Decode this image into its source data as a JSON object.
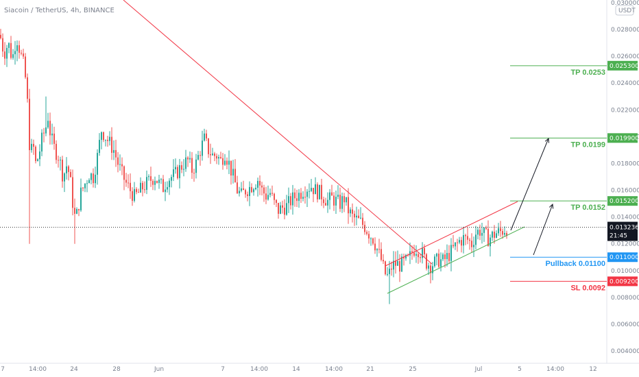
{
  "header": {
    "title": "Siacoin / TetherUS, 4h, BINANCE",
    "currency": "USDT"
  },
  "colors": {
    "up": "#26a69a",
    "down": "#ef5350",
    "tp": "#4caf50",
    "pullback": "#2196f3",
    "sl": "#f23645",
    "trend": "#f23645",
    "channel_lower": "#4caf50"
  },
  "chart_data": {
    "type": "candlestick",
    "title": "Siacoin / TetherUS, 4h, BINANCE",
    "ylim": [
      0.004,
      0.03
    ],
    "y_ticks": [
      "0.030000",
      "0.028000",
      "0.026000",
      "0.024000",
      "0.022000",
      "0.020000",
      "0.018000",
      "0.016000",
      "0.014000",
      "0.012000",
      "0.010000",
      "0.008000",
      "0.006000",
      "0.004000"
    ],
    "x_ticks": [
      "7",
      "14:00",
      "24",
      "28",
      "Jun",
      "7",
      "14:00",
      "14",
      "14:00",
      "21",
      "25",
      "Jul",
      "5",
      "14:00",
      "12"
    ],
    "last_price": "0.013236",
    "countdown": "21:45",
    "levels": [
      {
        "label": "TP 0.0253",
        "price": 0.0253,
        "tag": "0.025300",
        "kind": "tp"
      },
      {
        "label": "TP 0.0199",
        "price": 0.0199,
        "tag": "0.019900",
        "kind": "tp"
      },
      {
        "label": "TP 0.0152",
        "price": 0.0152,
        "tag": "0.015200",
        "kind": "tp"
      },
      {
        "label": "Pullback 0.01100",
        "price": 0.011,
        "tag": "0.011000",
        "kind": "pullback"
      },
      {
        "label": "SL 0.0092",
        "price": 0.0092,
        "tag": "0.009200",
        "kind": "sl"
      }
    ],
    "price_path": [
      [
        0,
        0.0276
      ],
      [
        6,
        0.0262
      ],
      [
        12,
        0.027
      ],
      [
        18,
        0.0258
      ],
      [
        24,
        0.0275
      ],
      [
        30,
        0.0262
      ],
      [
        36,
        0.025
      ],
      [
        40,
        0.0225
      ],
      [
        44,
        0.0185
      ],
      [
        48,
        0.0195
      ],
      [
        52,
        0.018
      ],
      [
        56,
        0.0185
      ],
      [
        62,
        0.02
      ],
      [
        66,
        0.0205
      ],
      [
        70,
        0.0215
      ],
      [
        74,
        0.02
      ],
      [
        80,
        0.019
      ],
      [
        86,
        0.0185
      ],
      [
        92,
        0.017
      ],
      [
        98,
        0.018
      ],
      [
        104,
        0.0162
      ],
      [
        108,
        0.014
      ],
      [
        112,
        0.0142
      ],
      [
        118,
        0.0158
      ],
      [
        124,
        0.0165
      ],
      [
        130,
        0.0172
      ],
      [
        136,
        0.017
      ],
      [
        142,
        0.0185
      ],
      [
        148,
        0.0205
      ],
      [
        154,
        0.02
      ],
      [
        160,
        0.0195
      ],
      [
        166,
        0.019
      ],
      [
        172,
        0.018
      ],
      [
        178,
        0.0172
      ],
      [
        184,
        0.0165
      ],
      [
        190,
        0.016
      ],
      [
        196,
        0.0155
      ],
      [
        202,
        0.0158
      ],
      [
        208,
        0.0162
      ],
      [
        214,
        0.0165
      ],
      [
        220,
        0.0168
      ],
      [
        226,
        0.017
      ],
      [
        232,
        0.0165
      ],
      [
        238,
        0.0162
      ],
      [
        244,
        0.0168
      ],
      [
        250,
        0.017
      ],
      [
        256,
        0.0172
      ],
      [
        262,
        0.0176
      ],
      [
        268,
        0.018
      ],
      [
        274,
        0.0182
      ],
      [
        280,
        0.0175
      ],
      [
        286,
        0.018
      ],
      [
        292,
        0.019
      ],
      [
        298,
        0.0198
      ],
      [
        304,
        0.019
      ],
      [
        310,
        0.0186
      ],
      [
        316,
        0.0186
      ],
      [
        322,
        0.0182
      ],
      [
        328,
        0.0188
      ],
      [
        334,
        0.018
      ],
      [
        340,
        0.017
      ],
      [
        346,
        0.016
      ],
      [
        352,
        0.0156
      ],
      [
        358,
        0.016
      ],
      [
        364,
        0.0162
      ],
      [
        370,
        0.0165
      ],
      [
        376,
        0.0168
      ],
      [
        382,
        0.016
      ],
      [
        388,
        0.0156
      ],
      [
        394,
        0.0158
      ],
      [
        400,
        0.015
      ],
      [
        406,
        0.0145
      ],
      [
        412,
        0.0147
      ],
      [
        418,
        0.0148
      ],
      [
        424,
        0.0152
      ],
      [
        430,
        0.0155
      ],
      [
        436,
        0.0157
      ],
      [
        442,
        0.016
      ],
      [
        448,
        0.0162
      ],
      [
        454,
        0.0163
      ],
      [
        460,
        0.016
      ],
      [
        466,
        0.0158
      ],
      [
        472,
        0.0155
      ],
      [
        478,
        0.0152
      ],
      [
        484,
        0.0154
      ],
      [
        490,
        0.0152
      ],
      [
        496,
        0.015
      ],
      [
        502,
        0.0154
      ],
      [
        508,
        0.0145
      ],
      [
        514,
        0.014
      ],
      [
        520,
        0.0138
      ],
      [
        526,
        0.0136
      ],
      [
        532,
        0.0133
      ],
      [
        538,
        0.0128
      ],
      [
        544,
        0.0124
      ],
      [
        550,
        0.0116
      ],
      [
        556,
        0.0108
      ],
      [
        560,
        0.01
      ],
      [
        564,
        0.0095
      ],
      [
        568,
        0.0098
      ],
      [
        572,
        0.0104
      ],
      [
        578,
        0.0105
      ],
      [
        584,
        0.0104
      ],
      [
        590,
        0.0106
      ],
      [
        596,
        0.0108
      ],
      [
        602,
        0.0115
      ],
      [
        606,
        0.0117
      ],
      [
        610,
        0.0116
      ],
      [
        616,
        0.0112
      ],
      [
        622,
        0.0106
      ],
      [
        628,
        0.0104
      ],
      [
        634,
        0.0106
      ],
      [
        640,
        0.0108
      ],
      [
        646,
        0.0107
      ],
      [
        652,
        0.011
      ],
      [
        658,
        0.0114
      ],
      [
        664,
        0.0118
      ],
      [
        670,
        0.0122
      ],
      [
        676,
        0.0124
      ],
      [
        682,
        0.0123
      ],
      [
        688,
        0.012
      ],
      [
        694,
        0.0128
      ],
      [
        700,
        0.013
      ],
      [
        706,
        0.0127
      ],
      [
        712,
        0.0124
      ],
      [
        718,
        0.0126
      ],
      [
        724,
        0.0128
      ],
      [
        730,
        0.0129
      ],
      [
        736,
        0.0131
      ],
      [
        741,
        0.0132
      ]
    ]
  }
}
